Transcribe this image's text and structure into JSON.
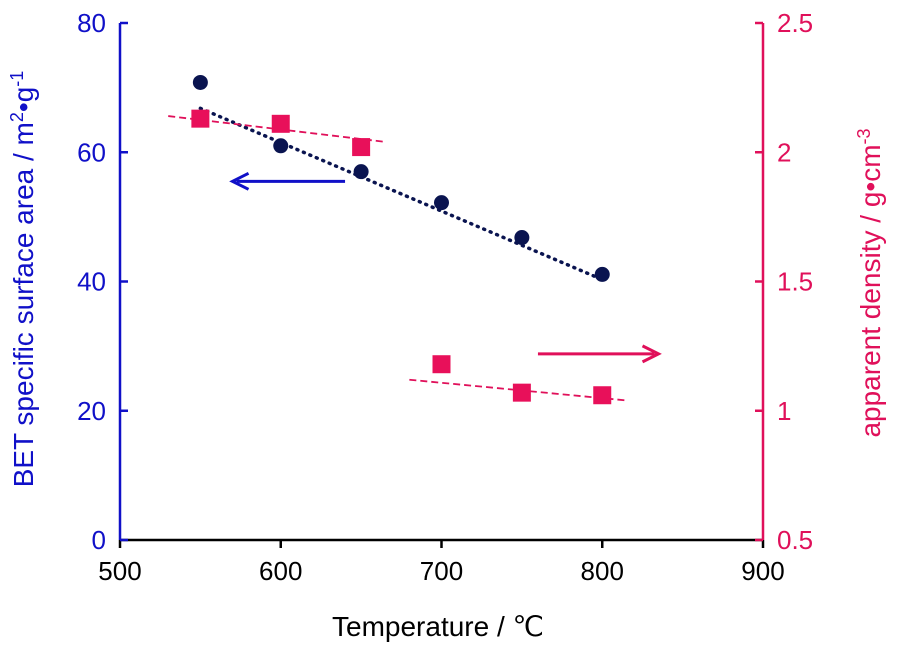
{
  "chart_data": {
    "type": "scatter",
    "xlabel": "Temperature / ℃",
    "ylabel_left": {
      "main": "BET specific surface area  / m",
      "sup1": "2",
      "mid": "•g",
      "sup2": "-1"
    },
    "ylabel_right": {
      "main": "apparent density / g•cm",
      "sup": "-3"
    },
    "xlim": [
      500,
      900
    ],
    "ylim_left": [
      0,
      80
    ],
    "ylim_right": [
      0.5,
      2.5
    ],
    "x_ticks": [
      "500",
      "600",
      "700",
      "800",
      "900"
    ],
    "y_left_ticks": [
      "0",
      "20",
      "40",
      "60",
      "80"
    ],
    "y_right_ticks": [
      "0.5",
      "1",
      "1.5",
      "2",
      "2.5"
    ],
    "colors": {
      "left_axis": "#1010c8",
      "right_axis": "#e0105a",
      "surface_marker": "#0a1450",
      "density_marker": "#e8105a"
    },
    "series": [
      {
        "axis": "left",
        "marker": "circle",
        "x": [
          550,
          600,
          650,
          700,
          750,
          800
        ],
        "y": [
          70.8,
          61.0,
          57.0,
          52.2,
          46.8,
          41.1
        ],
        "trendline": {
          "style": "dotted",
          "x": [
            550,
            800
          ],
          "y": [
            66.8,
            40.3
          ]
        }
      },
      {
        "axis": "right",
        "marker": "square",
        "x": [
          550,
          600,
          650,
          700,
          750,
          800
        ],
        "y": [
          2.13,
          2.11,
          2.02,
          1.18,
          1.07,
          1.06
        ],
        "trendlines": [
          {
            "style": "dashed",
            "x": [
              530,
              665
            ],
            "y": [
              2.14,
              2.04
            ]
          },
          {
            "style": "dashed",
            "x": [
              680,
              815
            ],
            "y": [
              1.12,
              1.04
            ]
          }
        ]
      }
    ],
    "annotations": [
      {
        "type": "arrow",
        "direction": "left",
        "axis": "left",
        "x_from": 640,
        "x_to": 570,
        "y": 55.5
      },
      {
        "type": "arrow",
        "direction": "right",
        "axis": "right",
        "x_from": 760,
        "x_to": 835,
        "y": 1.22
      }
    ]
  }
}
